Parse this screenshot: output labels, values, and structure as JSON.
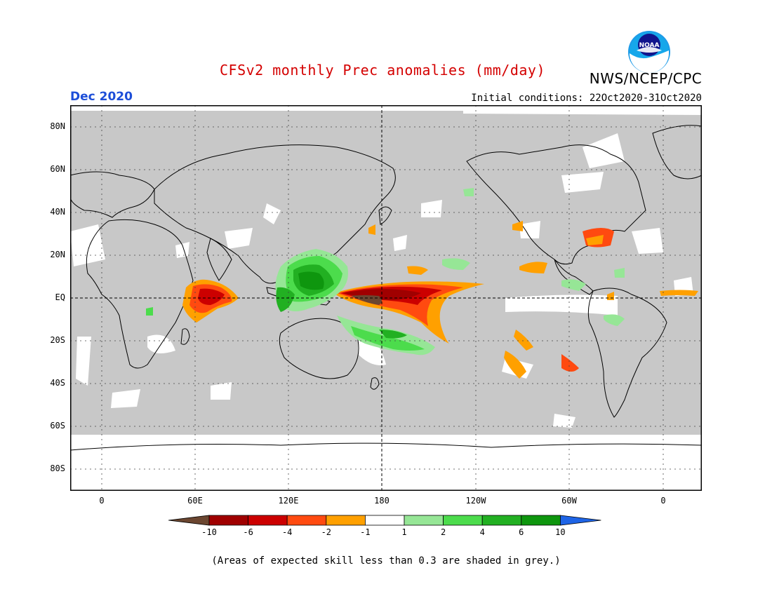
{
  "title": "CFSv2 monthly Prec anomalies (mm/day)",
  "agency": "NWS/NCEP/CPC",
  "logo_text": "NOAA",
  "month": "Dec 2020",
  "initial_conditions": "Initial conditions: 22Oct2020-31Oct2020",
  "lat_labels": [
    "80N",
    "60N",
    "40N",
    "20N",
    "EQ",
    "20S",
    "40S",
    "60S",
    "80S"
  ],
  "lon_labels": [
    "0",
    "60E",
    "120E",
    "180",
    "120W",
    "60W",
    "0"
  ],
  "colorbar": {
    "labels": [
      "-10",
      "-6",
      "-4",
      "-2",
      "-1",
      "1",
      "2",
      "4",
      "6",
      "10"
    ],
    "colors": [
      "#6b4630",
      "#a00000",
      "#cc0000",
      "#ff4a10",
      "#ffa000",
      "#ffffff",
      "#96e696",
      "#4cdc4c",
      "#22b022",
      "#0e960e",
      "#1e64e6"
    ]
  },
  "skill_note": "(Areas of expected skill less than 0.3 are shaded in grey.)",
  "colors": {
    "no_skill_grey": "#c8c8c8",
    "title_red": "#d40000",
    "month_blue": "#1d4ed8"
  }
}
